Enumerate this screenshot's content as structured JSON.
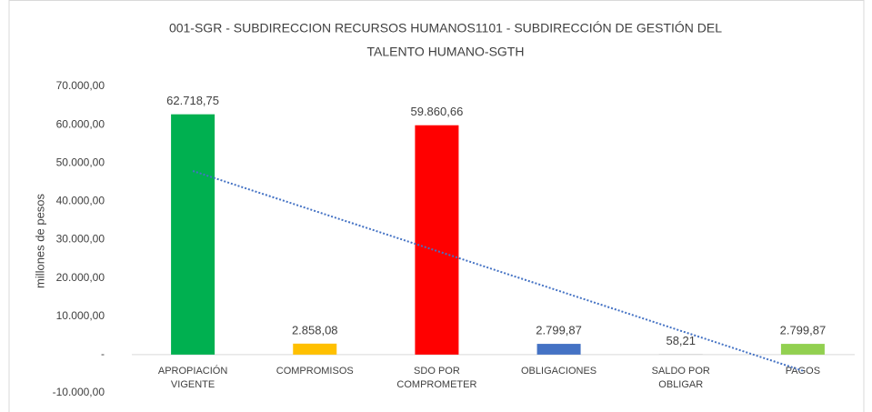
{
  "chart_data": {
    "type": "bar",
    "title": [
      "001-SGR - SUBDIRECCION RECURSOS HUMANOS1101 - SUBDIRECCIÓN DE GESTIÓN DEL",
      "TALENTO HUMANO-SGTH"
    ],
    "y_label": "millones de pesos",
    "categories": [
      "APROPIACIÓN VIGENTE",
      "COMPROMISOS",
      "SDO POR COMPROMETER",
      "OBLIGACIONES",
      "SALDO POR OBLIGAR",
      "PAGOS"
    ],
    "values": [
      62718.75,
      2858.08,
      59860.66,
      2799.87,
      58.21,
      2799.87
    ],
    "value_labels": [
      "62.718,75",
      "2.858,08",
      "59.860,66",
      "2.799,87",
      "58,21",
      "2.799,87"
    ],
    "colors": [
      "#00b050",
      "#ffc000",
      "#ff0000",
      "#4472c4",
      "#a5a5a5",
      "#92d050"
    ],
    "trendline": "linear",
    "trendline_color": "#4472c4",
    "ylim": [
      -10000,
      70000
    ],
    "yticks": [
      {
        "value": -10000,
        "label": "-10.000,00"
      },
      {
        "value": 0,
        "label": "-"
      },
      {
        "value": 10000,
        "label": "10.000,00"
      },
      {
        "value": 20000,
        "label": "20.000,00"
      },
      {
        "value": 30000,
        "label": "30.000,00"
      },
      {
        "value": 40000,
        "label": "40.000,00"
      },
      {
        "value": 50000,
        "label": "50.000,00"
      },
      {
        "value": 60000,
        "label": "60.000,00"
      },
      {
        "value": 70000,
        "label": "70.000,00"
      }
    ],
    "grid": false
  }
}
